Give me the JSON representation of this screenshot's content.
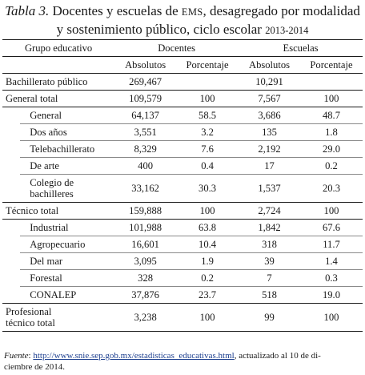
{
  "caption": {
    "label": "Tabla 3.",
    "text_before": "Docentes y escuelas de",
    "abbr": "EMS",
    "text_after": ", desagregado por modalidad y sostenimiento público, ciclo escolar",
    "years": "2013-2014"
  },
  "header": {
    "group_col": "Grupo educativo",
    "docentes": "Docentes",
    "escuelas": "Escuelas",
    "absolutos": "Absolutos",
    "porcentaje": "Porcentaje"
  },
  "rows": {
    "bach": {
      "label": "Bachillerato público",
      "d_abs": "269,467",
      "d_pct": "",
      "e_abs": "10,291",
      "e_pct": ""
    },
    "gen_total": {
      "label": "General total",
      "d_abs": "109,579",
      "d_pct": "100",
      "e_abs": "7,567",
      "e_pct": "100"
    },
    "general": {
      "label": "General",
      "d_abs": "64,137",
      "d_pct": "58.5",
      "e_abs": "3,686",
      "e_pct": "48.7"
    },
    "dos_anos": {
      "label": "Dos años",
      "d_abs": "3,551",
      "d_pct": "3.2",
      "e_abs": "135",
      "e_pct": "1.8"
    },
    "telebach": {
      "label": "Telebachillerato",
      "d_abs": "8,329",
      "d_pct": "7.6",
      "e_abs": "2,192",
      "e_pct": "29.0"
    },
    "arte": {
      "label": "De arte",
      "d_abs": "400",
      "d_pct": "0.4",
      "e_abs": "17",
      "e_pct": "0.2"
    },
    "colegio": {
      "label_l1": "Colegio de",
      "label_l2": "bachilleres",
      "d_abs": "33,162",
      "d_pct": "30.3",
      "e_abs": "1,537",
      "e_pct": "20.3"
    },
    "tec_total": {
      "label": "Técnico total",
      "d_abs": "159,888",
      "d_pct": "100",
      "e_abs": "2,724",
      "e_pct": "100"
    },
    "industrial": {
      "label": "Industrial",
      "d_abs": "101,988",
      "d_pct": "63.8",
      "e_abs": "1,842",
      "e_pct": "67.6"
    },
    "agro": {
      "label": "Agropecuario",
      "d_abs": "16,601",
      "d_pct": "10.4",
      "e_abs": "318",
      "e_pct": "11.7"
    },
    "mar": {
      "label": "Del mar",
      "d_abs": "3,095",
      "d_pct": "1.9",
      "e_abs": "39",
      "e_pct": "1.4"
    },
    "forestal": {
      "label": "Forestal",
      "d_abs": "328",
      "d_pct": "0.2",
      "e_abs": "7",
      "e_pct": "0.3"
    },
    "conalep": {
      "label": "CONALEP",
      "d_abs": "37,876",
      "d_pct": "23.7",
      "e_abs": "518",
      "e_pct": "19.0"
    },
    "prof_total": {
      "label_l1": "Profesional",
      "label_l2": "técnico total",
      "d_abs": "3,238",
      "d_pct": "100",
      "e_abs": "99",
      "e_pct": "100"
    }
  },
  "source": {
    "label": "Fuente",
    "url": "http://www.snie.sep.gob.mx/estadisticas_educativas.html",
    "note_before": ", actualizado al 10 de di-",
    "note_after": "ciembre de 2014."
  },
  "colors": {
    "text": "#1a1a1a",
    "link": "#1d3f8f",
    "rule_light": "#8a8a8a"
  }
}
